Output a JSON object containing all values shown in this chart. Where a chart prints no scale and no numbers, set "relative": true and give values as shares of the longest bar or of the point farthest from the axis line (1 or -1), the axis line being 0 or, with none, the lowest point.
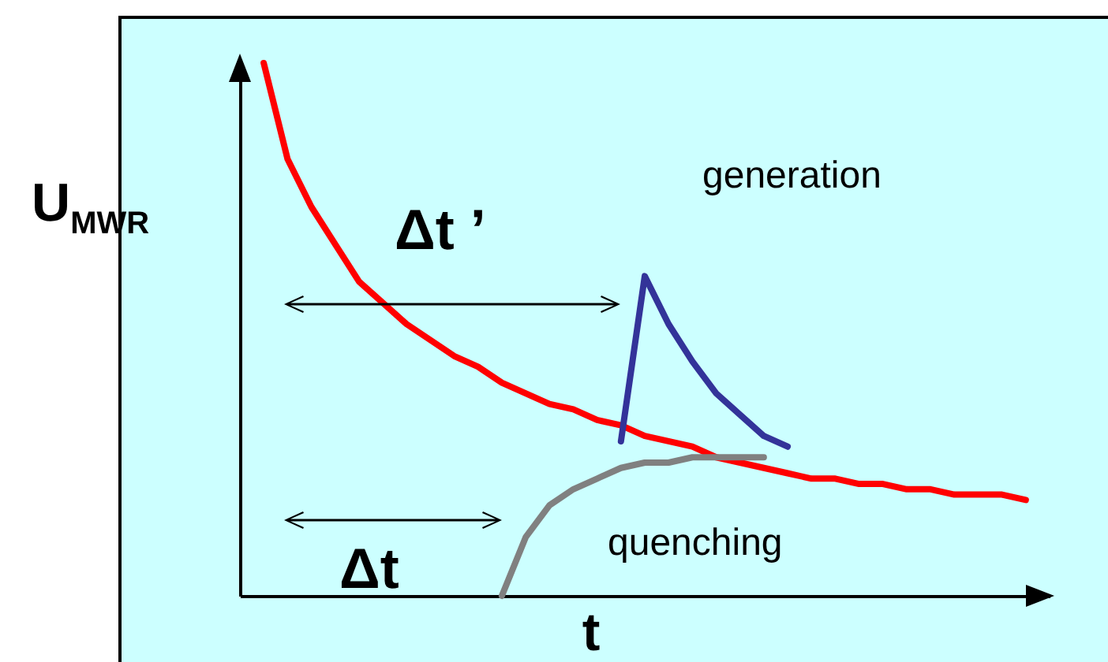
{
  "chart_data": {
    "type": "line",
    "relative": true,
    "ylabel": "U$_{MWR}$",
    "xlabel": "t",
    "tick_labels": false,
    "grid": false,
    "marker": "none",
    "categories": [
      null,
      null,
      null,
      null,
      null,
      null,
      null,
      null,
      null,
      null,
      null,
      null,
      null,
      null,
      null,
      null,
      null,
      null,
      null,
      null,
      null,
      null,
      null,
      null,
      null,
      null,
      null,
      null,
      null,
      null,
      null,
      null,
      null
    ],
    "series": [
      {
        "color": "#ff0000",
        "values": [
          1.0,
          0.82,
          0.73,
          0.66,
          0.59,
          0.55,
          0.51,
          0.48,
          0.45,
          0.43,
          0.4,
          0.38,
          0.36,
          0.35,
          0.33,
          0.32,
          0.3,
          0.29,
          0.28,
          0.26,
          0.25,
          0.24,
          0.23,
          0.22,
          0.22,
          0.21,
          0.21,
          0.2,
          0.2,
          0.19,
          0.19,
          0.19,
          0.18
        ]
      },
      {
        "color": "#333399",
        "values": [
          null,
          null,
          null,
          null,
          null,
          null,
          null,
          null,
          null,
          null,
          null,
          null,
          null,
          null,
          null,
          0.29,
          0.6,
          0.51,
          0.44,
          0.38,
          0.34,
          0.3,
          0.28,
          null,
          null,
          null,
          null,
          null,
          null,
          null,
          null,
          null,
          null
        ]
      },
      {
        "color": "#808080",
        "values": [
          null,
          null,
          null,
          null,
          null,
          null,
          null,
          null,
          null,
          null,
          0.0,
          0.11,
          0.17,
          0.2,
          0.22,
          0.24,
          0.25,
          0.25,
          0.26,
          0.26,
          0.26,
          0.26,
          null,
          null,
          null,
          null,
          null,
          null,
          null,
          null,
          null,
          null,
          null
        ]
      }
    ],
    "annotations": [
      "generation",
      "Δt ’",
      "quenching",
      "Δt"
    ]
  }
}
